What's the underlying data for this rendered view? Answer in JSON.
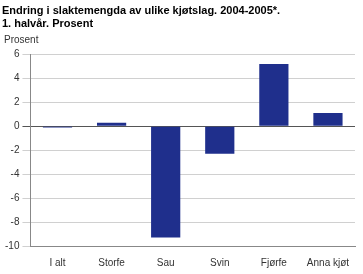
{
  "chart_data": {
    "type": "bar",
    "title": [
      "Endring i slaktemengda av ulike kjøtslag. 2004-2005*.",
      "1. halvår. Prosent"
    ],
    "y_label": "Prosent",
    "categories": [
      "I alt",
      "Storfe",
      "Sau",
      "Svin",
      "Fjørfe",
      "Anna kjøt"
    ],
    "values": [
      -0.1,
      0.3,
      -9.3,
      -2.3,
      5.2,
      1.1
    ],
    "color": "#1f2f8c",
    "ylim": [
      -10,
      6
    ],
    "yticks": [
      -10,
      -8,
      -6,
      -4,
      -2,
      0,
      2,
      4,
      6
    ],
    "grid": true
  }
}
